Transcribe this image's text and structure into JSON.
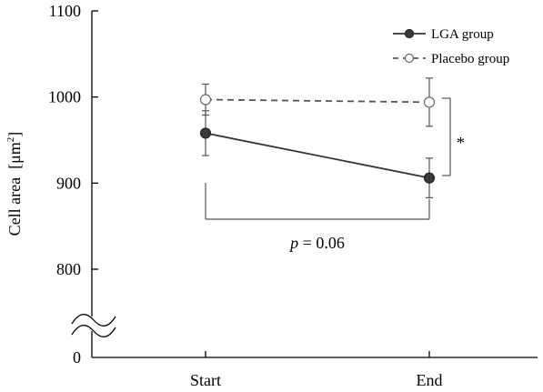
{
  "chart_data": {
    "type": "line",
    "title": "",
    "xlabel": "",
    "ylabel": "Cell area",
    "ylabel_unit": "[μm",
    "ylabel_unit_sup": "2",
    "ylabel_unit_close": "]",
    "categories": [
      "Start",
      "End"
    ],
    "y_ticks": [
      800,
      900,
      1000,
      1100
    ],
    "y_zero_label": "0",
    "y_axis_break": true,
    "ylim": [
      750,
      1100
    ],
    "grid": false,
    "legend_position": "top-right",
    "series": [
      {
        "name": "LGA group",
        "values": [
          958,
          906
        ],
        "error": [
          26,
          23
        ],
        "line_style": "solid",
        "marker": "filled-circle",
        "color": "#333333"
      },
      {
        "name": "Placebo group",
        "values": [
          997,
          994
        ],
        "error": [
          18,
          28
        ],
        "line_style": "dashed",
        "marker": "open-circle",
        "color": "#555555"
      }
    ],
    "annotations": {
      "p_label": "p",
      "p_rest": " = 0.06",
      "star": "*"
    }
  }
}
